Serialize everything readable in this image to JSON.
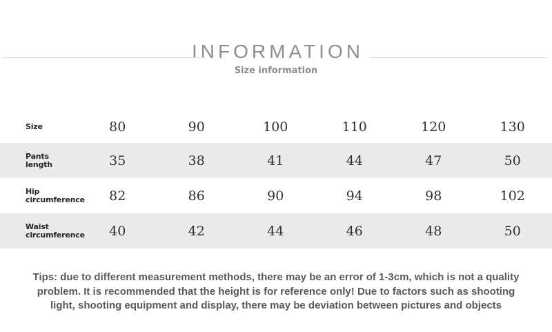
{
  "header": {
    "title": "INFORMATION",
    "subtitle": "Size information"
  },
  "size_table": {
    "header_row": {
      "label": "Size",
      "values": [
        "80",
        "90",
        "100",
        "110",
        "120",
        "130"
      ]
    },
    "rows": [
      {
        "label": "Pants length",
        "values": [
          "35",
          "38",
          "41",
          "44",
          "47",
          "50"
        ]
      },
      {
        "label": "Hip circumference",
        "values": [
          "82",
          "86",
          "90",
          "94",
          "98",
          "102"
        ]
      },
      {
        "label": "Waist circumference",
        "values": [
          "40",
          "42",
          "44",
          "46",
          "48",
          "50"
        ]
      }
    ]
  },
  "tips": {
    "text": "Tips: due to different measurement methods, there may be an error of 1-3cm, which is not a quality problem. It is recommended that the height is for reference only! Due to factors such as shooting light, shooting equipment and display, there may be deviation between pictures and objects"
  },
  "colors": {
    "title_text": "#8f8f8f",
    "subtitle_text": "#8c8c8c",
    "divider_line": "#dcdcdc",
    "row_shade": "#ebebeb",
    "label_text": "#262626",
    "value_text": "#303030",
    "tips_text": "#595959"
  }
}
